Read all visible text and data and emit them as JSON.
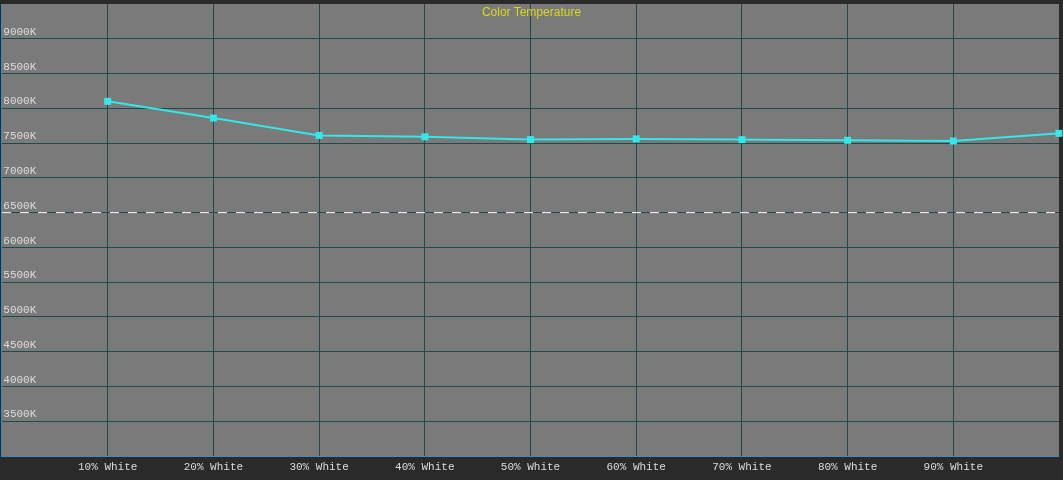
{
  "chart_data": {
    "type": "line",
    "title": "Color Temperature",
    "x": [
      10,
      20,
      30,
      40,
      50,
      60,
      70,
      80,
      90,
      100
    ],
    "series": [
      {
        "color": "#33e8e8",
        "values": [
          8100,
          7860,
          7610,
          7590,
          7550,
          7560,
          7550,
          7540,
          7530,
          7640
        ]
      }
    ],
    "xlim": [
      0,
      100
    ],
    "xticks": [
      {
        "value": 10,
        "label": "10% White"
      },
      {
        "value": 20,
        "label": "20% White"
      },
      {
        "value": 30,
        "label": "30% White"
      },
      {
        "value": 40,
        "label": "40% White"
      },
      {
        "value": 50,
        "label": "50% White"
      },
      {
        "value": 60,
        "label": "60% White"
      },
      {
        "value": 70,
        "label": "70% White"
      },
      {
        "value": 80,
        "label": "80% White"
      },
      {
        "value": 90,
        "label": "90% White"
      }
    ],
    "ylim": [
      3000,
      9500
    ],
    "yticks": [
      {
        "value": 3500,
        "label": "3500K"
      },
      {
        "value": 4000,
        "label": "4000K"
      },
      {
        "value": 4500,
        "label": "4500K"
      },
      {
        "value": 5000,
        "label": "5000K"
      },
      {
        "value": 5500,
        "label": "5500K"
      },
      {
        "value": 6000,
        "label": "6000K"
      },
      {
        "value": 6500,
        "label": "6500K"
      },
      {
        "value": 7000,
        "label": "7000K"
      },
      {
        "value": 7500,
        "label": "7500K"
      },
      {
        "value": 8000,
        "label": "8000K"
      },
      {
        "value": 8500,
        "label": "8500K"
      },
      {
        "value": 9000,
        "label": "9000K"
      }
    ],
    "ref_lines": [
      {
        "axis": "y",
        "value": 6500,
        "color": "#ffffff",
        "line_style": "dashed"
      }
    ],
    "grid": true,
    "marker": "square",
    "line_style": "solid"
  }
}
